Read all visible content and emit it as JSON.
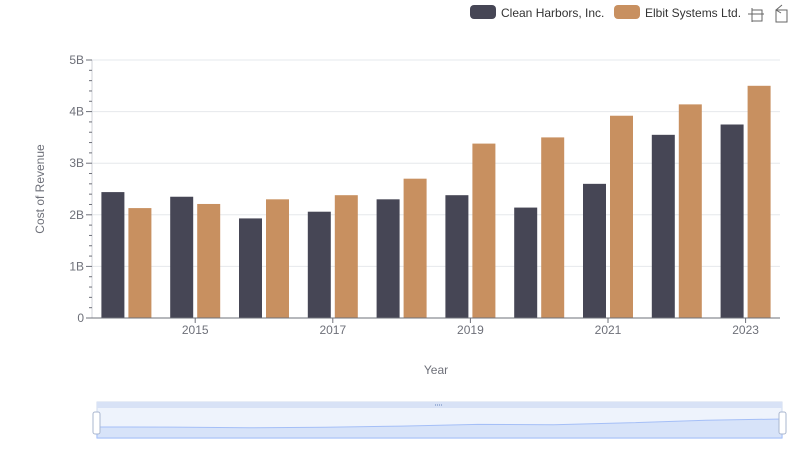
{
  "colors": {
    "clean_harbors": "#464655",
    "elbit": "#c89060",
    "grid": "#e6e8ec",
    "axis": "#6e7079",
    "zoom_fill": "#dce6fb",
    "zoom_line": "#8fb0f7"
  },
  "toolbar": {
    "zoom_icon": "zoom-icon",
    "restore_icon": "restore-icon"
  },
  "chart_data": {
    "type": "bar",
    "xlabel": "Year",
    "ylabel": "Cost of Revenue",
    "legend_position": "top-right",
    "grid": true,
    "x_tick_labels": [
      "2015",
      "2017",
      "2019",
      "2021",
      "2023"
    ],
    "y_tick_labels": [
      "0",
      "1B",
      "2B",
      "3B",
      "4B",
      "5B"
    ],
    "ylim": [
      0,
      5000000000
    ],
    "categories": [
      "2014",
      "2015",
      "2016",
      "2017",
      "2018",
      "2019",
      "2020",
      "2021",
      "2022",
      "2023"
    ],
    "series": [
      {
        "name": "Clean Harbors, Inc.",
        "color": "#464655",
        "values": [
          2440000000,
          2350000000,
          1930000000,
          2060000000,
          2300000000,
          2380000000,
          2140000000,
          2600000000,
          3550000000,
          3750000000
        ]
      },
      {
        "name": "Elbit Systems Ltd.",
        "color": "#c89060",
        "values": [
          2130000000,
          2210000000,
          2300000000,
          2380000000,
          2700000000,
          3380000000,
          3500000000,
          3920000000,
          4140000000,
          4500000000
        ]
      }
    ]
  }
}
